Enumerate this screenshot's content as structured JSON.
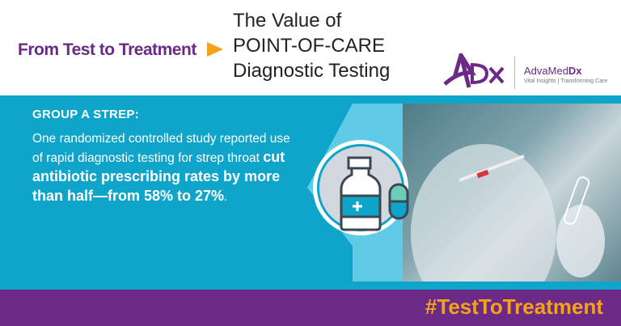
{
  "header": {
    "tagline": "From Test to Treatment",
    "title_lines": [
      "The Value of",
      "POINT-OF-CARE",
      "Diagnostic Testing"
    ]
  },
  "logo": {
    "mark": "ADx",
    "brand_a": "AdvaMed",
    "brand_b": "Dx",
    "subtitle": "Vital Insights | Transforming Care"
  },
  "main": {
    "heading": "GROUP A STREP:",
    "body_plain": "One randomized controlled study reported use of rapid diagnostic testing for strep throat ",
    "body_bold": "cut antibiotic prescribing rates by more than half—from 58% to 27%",
    "body_end": "."
  },
  "footer": {
    "hashtag": "#TestToTreatment"
  },
  "colors": {
    "purple": "#6b2a86",
    "cyan": "#0fa5cb",
    "orange": "#f5a21b"
  },
  "icons": {
    "medicine": "medicine-bottle-and-pill-icon"
  }
}
